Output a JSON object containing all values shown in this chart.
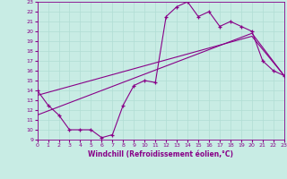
{
  "xlabel": "Windchill (Refroidissement éolien,°C)",
  "background_color": "#c8ece4",
  "grid_color": "#b0ddd4",
  "line_color": "#880088",
  "xlim": [
    0,
    23
  ],
  "ylim": [
    9,
    23
  ],
  "xticks": [
    0,
    1,
    2,
    3,
    4,
    5,
    6,
    7,
    8,
    9,
    10,
    11,
    12,
    13,
    14,
    15,
    16,
    17,
    18,
    19,
    20,
    21,
    22,
    23
  ],
  "yticks": [
    9,
    10,
    11,
    12,
    13,
    14,
    15,
    16,
    17,
    18,
    19,
    20,
    21,
    22,
    23
  ],
  "line1_x": [
    0,
    1,
    2,
    3,
    4,
    5,
    6,
    7,
    8,
    9,
    10,
    11,
    12,
    13,
    14,
    15,
    16,
    17,
    18,
    19,
    20,
    21,
    22,
    23
  ],
  "line1_y": [
    14,
    12.5,
    11.5,
    10,
    10,
    10,
    9.2,
    9.5,
    12.5,
    14.5,
    15,
    14.8,
    21.5,
    22.5,
    23,
    21.5,
    22,
    20.5,
    21,
    20.5,
    20,
    17,
    16,
    15.5
  ],
  "line2_x": [
    0,
    20,
    23
  ],
  "line2_y": [
    11.5,
    19.8,
    15.5
  ],
  "line3_x": [
    0,
    20,
    23
  ],
  "line3_y": [
    13.5,
    19.5,
    15.5
  ]
}
